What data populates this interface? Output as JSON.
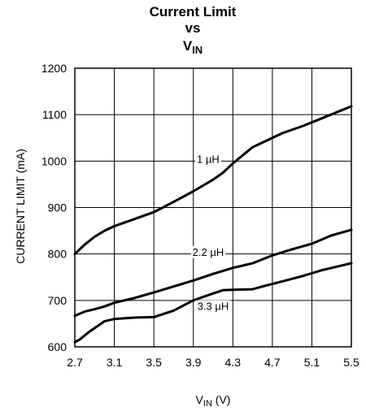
{
  "chart_data": {
    "type": "line",
    "title": {
      "line1": "Current Limit",
      "line2": "vs",
      "line3_main": "V",
      "line3_sub": "IN"
    },
    "xlabel": {
      "main": "V",
      "sub": "IN",
      "unit": " (V)"
    },
    "ylabel": "CURRENT LIMIT (mA)",
    "xlim": [
      2.7,
      5.5
    ],
    "ylim": [
      600,
      1200
    ],
    "xticks": [
      "2.7",
      "3.1",
      "3.5",
      "3.9",
      "4.3",
      "4.7",
      "5.1",
      "5.5"
    ],
    "yticks": [
      "600",
      "700",
      "800",
      "900",
      "1000",
      "1100",
      "1200"
    ],
    "grid": true,
    "series": [
      {
        "name": "1 µH",
        "x": [
          2.7,
          2.8,
          2.9,
          3.0,
          3.1,
          3.3,
          3.5,
          3.7,
          3.9,
          4.1,
          4.2,
          4.3,
          4.5,
          4.6,
          4.8,
          5.0,
          5.2,
          5.5
        ],
        "y": [
          800,
          820,
          837,
          850,
          860,
          875,
          890,
          912,
          935,
          960,
          975,
          995,
          1030,
          1040,
          1060,
          1075,
          1092,
          1118
        ]
      },
      {
        "name": "2.2 µH",
        "x": [
          2.7,
          2.8,
          2.9,
          3.0,
          3.1,
          3.3,
          3.5,
          3.7,
          3.9,
          4.1,
          4.3,
          4.4,
          4.5,
          4.7,
          4.9,
          5.1,
          5.3,
          5.5
        ],
        "y": [
          667,
          676,
          681,
          687,
          695,
          705,
          717,
          730,
          743,
          757,
          770,
          775,
          780,
          797,
          810,
          822,
          840,
          852
        ]
      },
      {
        "name": "3.3 µH",
        "x": [
          2.7,
          2.75,
          2.85,
          3.0,
          3.1,
          3.3,
          3.5,
          3.7,
          3.9,
          4.1,
          4.2,
          4.3,
          4.5,
          4.6,
          4.8,
          5.0,
          5.2,
          5.5
        ],
        "y": [
          610,
          616,
          633,
          655,
          660,
          663,
          664,
          678,
          700,
          715,
          722,
          723,
          724,
          730,
          741,
          752,
          765,
          780
        ]
      }
    ],
    "series_labels": [
      {
        "text": "1 µH",
        "at_x": 4.05,
        "at_y": 1005
      },
      {
        "text": "2.2 µH",
        "at_x": 4.05,
        "at_y": 805
      },
      {
        "text": "3.3 µH",
        "at_x": 4.1,
        "at_y": 688
      }
    ]
  }
}
